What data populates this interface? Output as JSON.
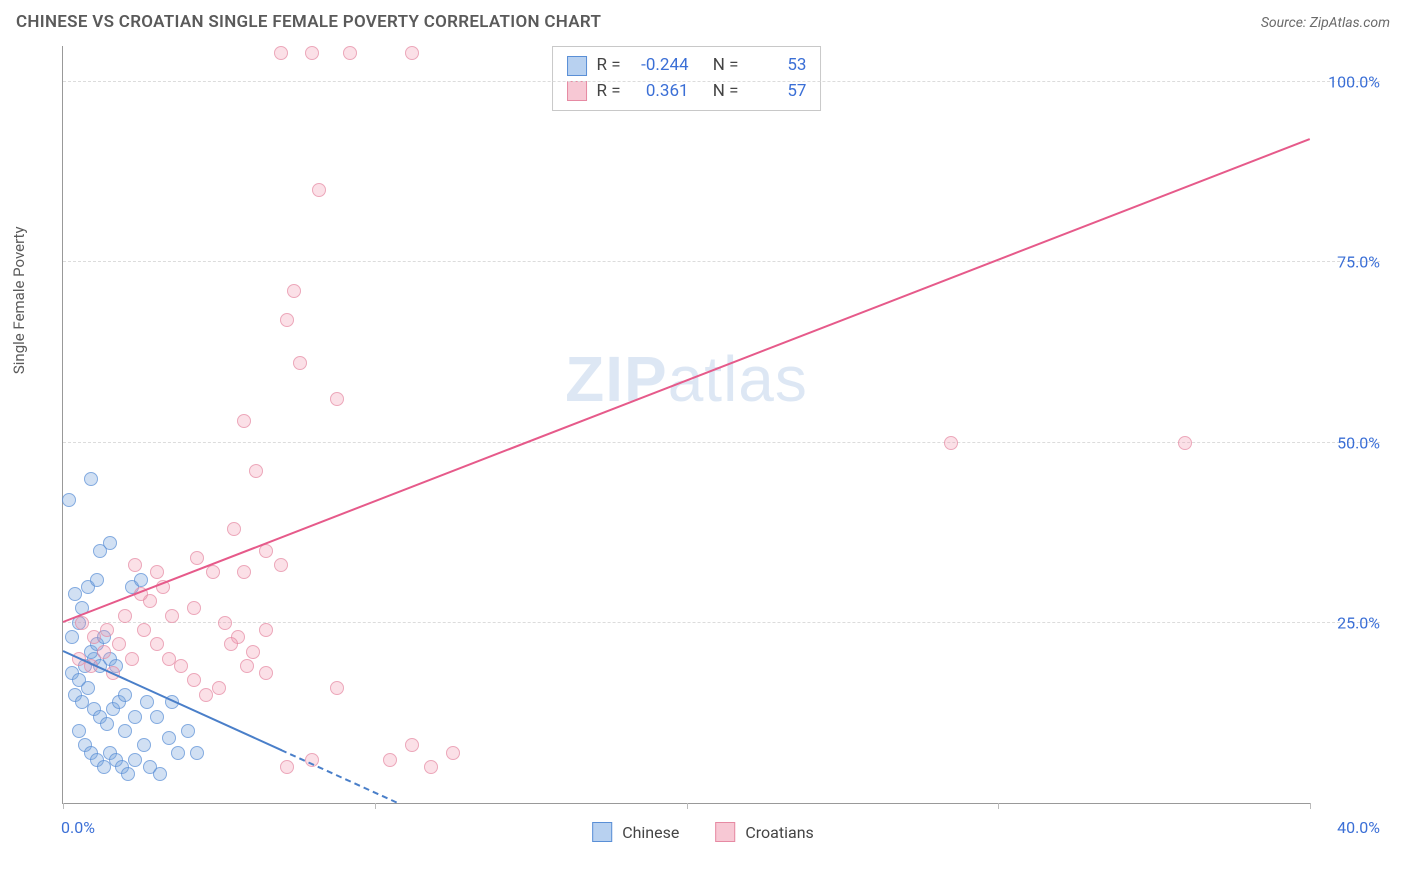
{
  "title": "CHINESE VS CROATIAN SINGLE FEMALE POVERTY CORRELATION CHART",
  "source_label": "Source:",
  "source_name": "ZipAtlas.com",
  "ylabel": "Single Female Poverty",
  "watermark_a": "ZIP",
  "watermark_b": "atlas",
  "chart": {
    "type": "scatter",
    "xlim": [
      0,
      40
    ],
    "ylim": [
      0,
      105
    ],
    "xticks": [
      0,
      10,
      20,
      30,
      40
    ],
    "xtick_labels_show": [
      0,
      40
    ],
    "xtick_labels": {
      "0": "0.0%",
      "40": "40.0%"
    },
    "yticks": [
      25,
      50,
      75,
      100
    ],
    "ytick_labels": {
      "25": "25.0%",
      "50": "50.0%",
      "75": "75.0%",
      "100": "100.0%"
    },
    "background_color": "#ffffff",
    "grid_color": "#dcdcdc",
    "axis_color": "#999999",
    "tick_label_color": "#3b6fd6",
    "series": [
      {
        "key": "chinese",
        "label": "Chinese",
        "swatch_fill": "#b8d1f0",
        "swatch_border": "#5a8fd6",
        "marker_fill": "rgba(120,165,220,0.45)",
        "marker_border": "#5a8fd6",
        "line_color": "#4a7fc9",
        "R": "-0.244",
        "N": "53",
        "regression": {
          "x1": 0,
          "y1": 21,
          "x2": 10.7,
          "y2": 0,
          "dash_after_x": 7.0
        },
        "points": [
          [
            0.2,
            42
          ],
          [
            0.9,
            45
          ],
          [
            0.3,
            23
          ],
          [
            0.5,
            25
          ],
          [
            0.6,
            27
          ],
          [
            0.4,
            29
          ],
          [
            0.8,
            30
          ],
          [
            1.1,
            31
          ],
          [
            1.2,
            35
          ],
          [
            1.0,
            20
          ],
          [
            1.2,
            19
          ],
          [
            0.3,
            18
          ],
          [
            0.5,
            17
          ],
          [
            0.7,
            19
          ],
          [
            0.9,
            21
          ],
          [
            1.1,
            22
          ],
          [
            1.3,
            23
          ],
          [
            1.5,
            20
          ],
          [
            1.7,
            19
          ],
          [
            0.4,
            15
          ],
          [
            0.6,
            14
          ],
          [
            0.8,
            16
          ],
          [
            1.0,
            13
          ],
          [
            1.2,
            12
          ],
          [
            1.4,
            11
          ],
          [
            1.6,
            13
          ],
          [
            1.8,
            14
          ],
          [
            2.0,
            15
          ],
          [
            2.2,
            30
          ],
          [
            2.5,
            31
          ],
          [
            0.5,
            10
          ],
          [
            0.7,
            8
          ],
          [
            0.9,
            7
          ],
          [
            1.1,
            6
          ],
          [
            1.3,
            5
          ],
          [
            1.5,
            7
          ],
          [
            1.7,
            6
          ],
          [
            1.9,
            5
          ],
          [
            2.1,
            4
          ],
          [
            2.3,
            6
          ],
          [
            2.6,
            8
          ],
          [
            2.8,
            5
          ],
          [
            3.1,
            4
          ],
          [
            3.4,
            9
          ],
          [
            3.7,
            7
          ],
          [
            2.0,
            10
          ],
          [
            2.3,
            12
          ],
          [
            2.7,
            14
          ],
          [
            3.0,
            12
          ],
          [
            3.5,
            14
          ],
          [
            4.0,
            10
          ],
          [
            4.3,
            7
          ],
          [
            1.5,
            36
          ]
        ]
      },
      {
        "key": "croatians",
        "label": "Croatians",
        "swatch_fill": "#f7c8d4",
        "swatch_border": "#e68aa3",
        "marker_fill": "rgba(240,150,175,0.40)",
        "marker_border": "#e68aa3",
        "line_color": "#e65a8a",
        "R": "0.361",
        "N": "57",
        "regression": {
          "x1": 0,
          "y1": 25,
          "x2": 40,
          "y2": 92
        },
        "points": [
          [
            7.0,
            104
          ],
          [
            8.0,
            104
          ],
          [
            9.2,
            104
          ],
          [
            11.2,
            104
          ],
          [
            8.2,
            85
          ],
          [
            7.4,
            71
          ],
          [
            7.2,
            67
          ],
          [
            7.6,
            61
          ],
          [
            8.8,
            56
          ],
          [
            5.8,
            53
          ],
          [
            6.2,
            46
          ],
          [
            5.5,
            38
          ],
          [
            4.3,
            34
          ],
          [
            6.5,
            35
          ],
          [
            5.8,
            32
          ],
          [
            7.0,
            33
          ],
          [
            2.3,
            33
          ],
          [
            3.0,
            32
          ],
          [
            2.8,
            28
          ],
          [
            3.5,
            26
          ],
          [
            4.2,
            27
          ],
          [
            4.8,
            32
          ],
          [
            5.2,
            25
          ],
          [
            5.6,
            23
          ],
          [
            6.1,
            21
          ],
          [
            6.5,
            24
          ],
          [
            0.6,
            25
          ],
          [
            1.0,
            23
          ],
          [
            1.4,
            24
          ],
          [
            1.8,
            22
          ],
          [
            2.2,
            20
          ],
          [
            2.6,
            24
          ],
          [
            3.0,
            22
          ],
          [
            3.4,
            20
          ],
          [
            3.8,
            19
          ],
          [
            4.2,
            17
          ],
          [
            0.5,
            20
          ],
          [
            0.9,
            19
          ],
          [
            1.3,
            21
          ],
          [
            1.6,
            18
          ],
          [
            4.6,
            15
          ],
          [
            5.0,
            16
          ],
          [
            5.4,
            22
          ],
          [
            5.9,
            19
          ],
          [
            6.5,
            18
          ],
          [
            7.2,
            5
          ],
          [
            8.0,
            6
          ],
          [
            8.8,
            16
          ],
          [
            10.5,
            6
          ],
          [
            11.2,
            8
          ],
          [
            11.8,
            5
          ],
          [
            12.5,
            7
          ],
          [
            28.5,
            50
          ],
          [
            36.0,
            50
          ],
          [
            2.0,
            26
          ],
          [
            2.5,
            29
          ],
          [
            3.2,
            30
          ]
        ]
      }
    ]
  },
  "legend_top": {
    "R_label": "R =",
    "N_label": "N ="
  }
}
